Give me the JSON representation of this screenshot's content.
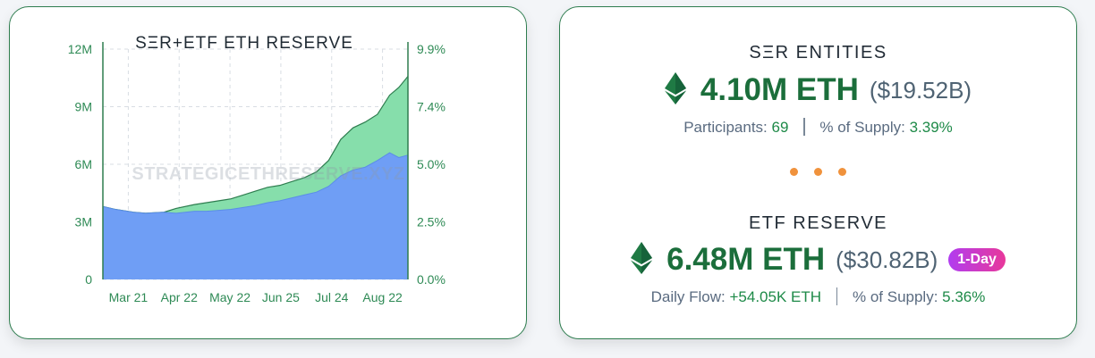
{
  "left": {
    "chart_title": "SΞR+ETF ETH RESERVE",
    "watermark": "STRATEGICETHRESERVE.XYZ"
  },
  "chart_data": {
    "type": "area",
    "title": "SΞR+ETF ETH RESERVE",
    "categories": [
      "Mar 21",
      "Apr 22",
      "May 22",
      "Jun 25",
      "Jul 24",
      "Aug 22"
    ],
    "y_left_ticks": [
      "0",
      "3M",
      "6M",
      "9M",
      "12M"
    ],
    "y_right_ticks": [
      "0.0%",
      "2.5%",
      "5.0%",
      "7.4%",
      "9.9%"
    ],
    "ylim": [
      0,
      12
    ],
    "y_unit": "M ETH",
    "grid": true,
    "colors": {
      "etf": "#6f9ef5",
      "ser": "#86deab",
      "line": "#2e7d4f"
    },
    "x": [
      0,
      0.04,
      0.1,
      0.14,
      0.2,
      0.24,
      0.3,
      0.34,
      0.38,
      0.42,
      0.46,
      0.5,
      0.54,
      0.58,
      0.62,
      0.66,
      0.7,
      0.74,
      0.78,
      0.82,
      0.86,
      0.9,
      0.94,
      0.97,
      1.0
    ],
    "series": [
      {
        "values": [
          3.8,
          3.65,
          3.5,
          3.45,
          3.5,
          3.45,
          3.55,
          3.55,
          3.6,
          3.65,
          3.75,
          3.85,
          4.0,
          4.1,
          4.25,
          4.4,
          4.55,
          4.85,
          5.4,
          5.7,
          5.85,
          6.2,
          6.6,
          6.35,
          6.48
        ]
      },
      {
        "values": [
          3.8,
          3.65,
          3.5,
          3.45,
          3.5,
          3.7,
          3.9,
          4.0,
          4.1,
          4.2,
          4.4,
          4.6,
          4.8,
          4.9,
          5.1,
          5.3,
          5.6,
          6.2,
          7.3,
          7.9,
          8.2,
          8.6,
          9.6,
          10.0,
          10.58
        ]
      }
    ]
  },
  "ser": {
    "title": "SΞR ENTITIES",
    "amount": "4.10M ETH",
    "usd": "($19.52B)",
    "participants_label": "Participants:",
    "participants_value": "69",
    "supply_label": "% of Supply:",
    "supply_value": "3.39%"
  },
  "etf": {
    "title": "ETF RESERVE",
    "amount": "6.48M ETH",
    "usd": "($30.82B)",
    "badge": "1-Day",
    "flow_label": "Daily Flow:",
    "flow_value": "+54.05K ETH",
    "supply_label": "% of Supply:",
    "supply_value": "5.36%"
  },
  "icons": [
    "eth-diamond-icon"
  ]
}
